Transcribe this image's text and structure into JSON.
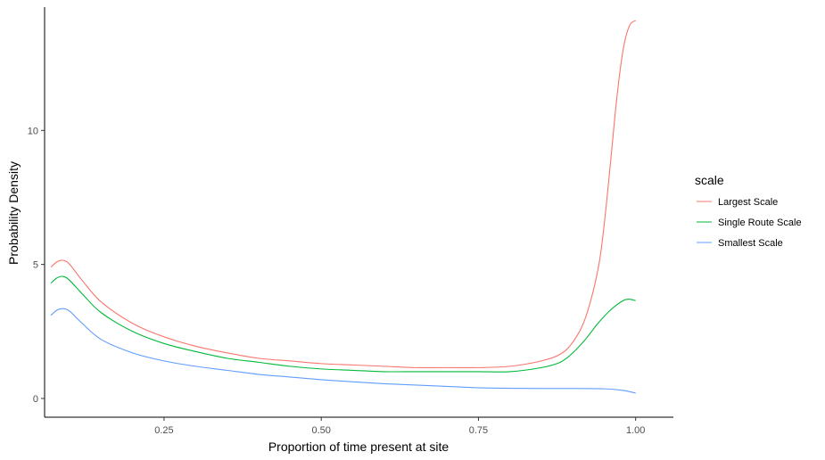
{
  "chart_data": {
    "type": "line",
    "title": "",
    "xlabel": "Proportion of time present at site",
    "ylabel": "Probability Density",
    "xlim": [
      0.06,
      1.06
    ],
    "ylim": [
      -0.7,
      14.6
    ],
    "x_ticks": [
      0.25,
      0.5,
      0.75,
      1.0
    ],
    "x_tick_labels": [
      "0.25",
      "0.50",
      "0.75",
      "1.00"
    ],
    "y_ticks": [
      0,
      5,
      10
    ],
    "y_tick_labels": [
      "0",
      "5",
      "10"
    ],
    "grid": false,
    "legend": {
      "title": "scale",
      "position": "right"
    },
    "series": [
      {
        "name": "Largest Scale",
        "color": "#F8766D",
        "x": [
          0.07,
          0.08,
          0.09,
          0.1,
          0.12,
          0.15,
          0.2,
          0.25,
          0.3,
          0.35,
          0.4,
          0.45,
          0.5,
          0.55,
          0.6,
          0.65,
          0.7,
          0.75,
          0.8,
          0.85,
          0.88,
          0.9,
          0.92,
          0.94,
          0.95,
          0.96,
          0.97,
          0.98,
          0.99,
          1.0
        ],
        "y": [
          4.9,
          5.1,
          5.15,
          5.0,
          4.4,
          3.6,
          2.8,
          2.3,
          1.95,
          1.7,
          1.5,
          1.4,
          1.3,
          1.25,
          1.2,
          1.15,
          1.15,
          1.15,
          1.2,
          1.4,
          1.65,
          2.1,
          3.0,
          4.8,
          6.5,
          8.8,
          11.2,
          13.0,
          13.9,
          14.1
        ]
      },
      {
        "name": "Single Route Scale",
        "color": "#00BA38",
        "x": [
          0.07,
          0.08,
          0.09,
          0.1,
          0.12,
          0.15,
          0.2,
          0.25,
          0.3,
          0.35,
          0.4,
          0.45,
          0.5,
          0.55,
          0.6,
          0.65,
          0.7,
          0.75,
          0.8,
          0.85,
          0.88,
          0.9,
          0.92,
          0.94,
          0.96,
          0.98,
          0.99,
          1.0
        ],
        "y": [
          4.3,
          4.5,
          4.55,
          4.4,
          3.9,
          3.2,
          2.5,
          2.05,
          1.75,
          1.5,
          1.35,
          1.2,
          1.1,
          1.05,
          1.0,
          1.0,
          1.0,
          1.0,
          1.0,
          1.15,
          1.35,
          1.7,
          2.2,
          2.8,
          3.3,
          3.65,
          3.7,
          3.65
        ]
      },
      {
        "name": "Smallest Scale",
        "color": "#619CFF",
        "x": [
          0.07,
          0.08,
          0.09,
          0.1,
          0.12,
          0.15,
          0.2,
          0.25,
          0.3,
          0.35,
          0.4,
          0.45,
          0.5,
          0.55,
          0.6,
          0.65,
          0.7,
          0.75,
          0.8,
          0.85,
          0.9,
          0.95,
          0.98,
          1.0
        ],
        "y": [
          3.1,
          3.3,
          3.35,
          3.25,
          2.8,
          2.2,
          1.7,
          1.4,
          1.2,
          1.05,
          0.9,
          0.8,
          0.7,
          0.62,
          0.55,
          0.5,
          0.45,
          0.4,
          0.38,
          0.37,
          0.37,
          0.36,
          0.3,
          0.2
        ]
      }
    ]
  }
}
